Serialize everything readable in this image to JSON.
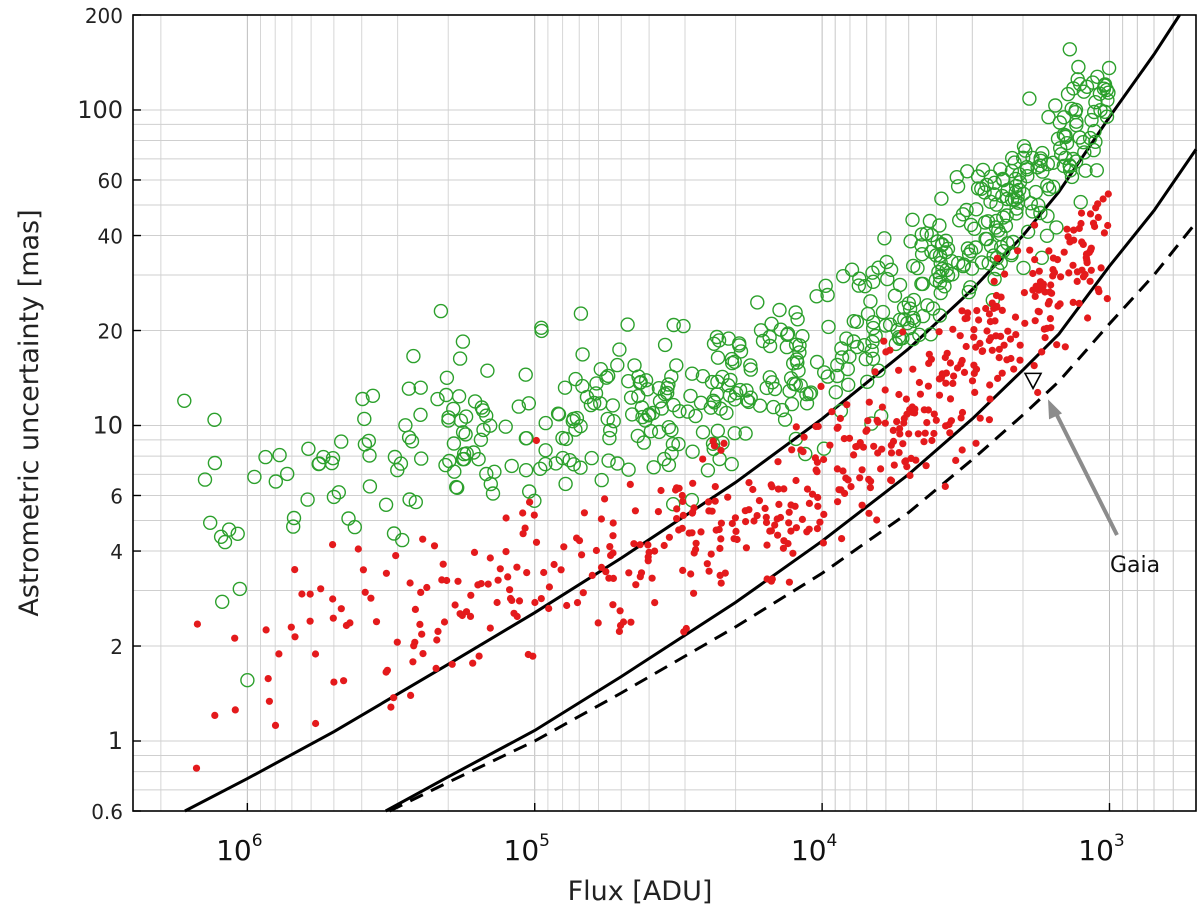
{
  "chart_data": {
    "type": "scatter",
    "title": "",
    "xlabel": "Flux [ADU]",
    "ylabel": "Astrometric uncertainty [mas]",
    "x_scale": "log",
    "x_reversed": true,
    "y_scale": "log",
    "xlim": [
      2500000,
      500
    ],
    "ylim": [
      0.6,
      200
    ],
    "grid": true,
    "colors": {
      "open_circles": "#2ca02c",
      "filled_points": "#e41a1c",
      "curves": "#000000",
      "annotation_arrow": "#8c8c8c"
    },
    "x_ticks": [
      {
        "value": 1000000,
        "base": "10",
        "exp": "6"
      },
      {
        "value": 100000,
        "base": "10",
        "exp": "5"
      },
      {
        "value": 10000,
        "base": "10",
        "exp": "4"
      },
      {
        "value": 1000,
        "base": "10",
        "exp": "3"
      }
    ],
    "y_ticks": [
      {
        "value": 200,
        "label": "200",
        "major": false
      },
      {
        "value": 100,
        "label": "100",
        "major": true
      },
      {
        "value": 60,
        "label": "60",
        "major": false
      },
      {
        "value": 40,
        "label": "40",
        "major": false
      },
      {
        "value": 20,
        "label": "20",
        "major": false
      },
      {
        "value": 10,
        "label": "10",
        "major": true
      },
      {
        "value": 6,
        "label": "6",
        "major": false
      },
      {
        "value": 4,
        "label": "4",
        "major": false
      },
      {
        "value": 2,
        "label": "2",
        "major": false
      },
      {
        "value": 1,
        "label": "1",
        "major": true
      },
      {
        "value": 0.6,
        "label": "0.6",
        "major": false
      }
    ],
    "series": [
      {
        "kind": "open-circles",
        "color": "#2ca02c",
        "trend": [
          [
            1900000,
            4.2
          ],
          [
            1200000,
            5.0
          ],
          [
            700000,
            6.2
          ],
          [
            400000,
            7.3
          ],
          [
            200000,
            8.6
          ],
          [
            100000,
            9.6
          ],
          [
            50000,
            10.6
          ],
          [
            25000,
            11.8
          ],
          [
            15000,
            14.0
          ],
          [
            10000,
            16.5
          ],
          [
            7000,
            20.5
          ],
          [
            5000,
            27.0
          ],
          [
            3000,
            39.0
          ],
          [
            2000,
            54.0
          ],
          [
            1500,
            72.0
          ],
          [
            1200,
            97.0
          ],
          [
            1000,
            120.0
          ]
        ],
        "scatter": 0.16,
        "count": 560
      },
      {
        "kind": "filled-points",
        "color": "#e41a1c",
        "trend": [
          [
            1900000,
            1.55
          ],
          [
            1000000,
            1.85
          ],
          [
            600000,
            2.2
          ],
          [
            300000,
            2.55
          ],
          [
            150000,
            2.9
          ],
          [
            80000,
            3.3
          ],
          [
            40000,
            3.7
          ],
          [
            25000,
            4.3
          ],
          [
            15000,
            5.2
          ],
          [
            10000,
            6.6
          ],
          [
            7000,
            8.3
          ],
          [
            5000,
            10.8
          ],
          [
            3000,
            16.0
          ],
          [
            2000,
            22.0
          ],
          [
            1500,
            28.0
          ],
          [
            1200,
            35.0
          ],
          [
            1000,
            42.0
          ]
        ],
        "scatter": 0.17,
        "count": 540
      }
    ],
    "curves": [
      {
        "style": "solid",
        "points": [
          [
            1650000,
            0.6
          ],
          [
            1000000,
            0.76
          ],
          [
            500000,
            1.07
          ],
          [
            200000,
            1.75
          ],
          [
            100000,
            2.55
          ],
          [
            50000,
            3.8
          ],
          [
            20000,
            6.6
          ],
          [
            10000,
            10.5
          ],
          [
            5000,
            17.5
          ],
          [
            3000,
            27.0
          ],
          [
            2000,
            40.0
          ],
          [
            1500,
            55.0
          ],
          [
            1000,
            95.0
          ],
          [
            700,
            150.0
          ],
          [
            570,
            200.0
          ]
        ]
      },
      {
        "style": "solid",
        "points": [
          [
            330000,
            0.6
          ],
          [
            200000,
            0.77
          ],
          [
            100000,
            1.08
          ],
          [
            50000,
            1.6
          ],
          [
            20000,
            2.75
          ],
          [
            10000,
            4.3
          ],
          [
            5000,
            7.0
          ],
          [
            3000,
            10.5
          ],
          [
            2000,
            15.0
          ],
          [
            1500,
            19.5
          ],
          [
            1000,
            32.0
          ],
          [
            700,
            48.0
          ],
          [
            500,
            75.0
          ]
        ]
      },
      {
        "style": "dashed",
        "points": [
          [
            320000,
            0.6
          ],
          [
            200000,
            0.74
          ],
          [
            100000,
            1.0
          ],
          [
            50000,
            1.42
          ],
          [
            20000,
            2.3
          ],
          [
            10000,
            3.4
          ],
          [
            5000,
            5.3
          ],
          [
            3000,
            7.8
          ],
          [
            2000,
            10.8
          ],
          [
            1500,
            13.8
          ],
          [
            1000,
            21.0
          ],
          [
            700,
            30.0
          ],
          [
            500,
            44.0
          ]
        ]
      }
    ],
    "annotations": [
      {
        "text": "Gaia",
        "marker": "open-triangle",
        "marker_point": [
          1860,
          14.0
        ]
      }
    ]
  }
}
